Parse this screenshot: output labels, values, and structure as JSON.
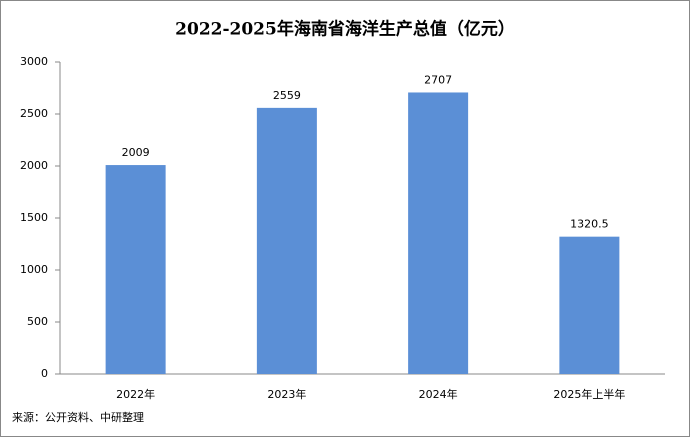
{
  "chart_data": {
    "type": "bar",
    "title": "2022-2025年海南省海洋生产总值（亿元）",
    "categories": [
      "2022年",
      "2023年",
      "2024年",
      "2025年上半年"
    ],
    "values": [
      2009,
      2559,
      2707,
      1320.5
    ],
    "color": "#5b8fd6",
    "ylim": [
      0,
      3000
    ],
    "yticks": [
      0,
      500,
      1000,
      1500,
      2000,
      2500,
      3000
    ],
    "grid": false,
    "source": "来源：公开资料、中研整理"
  }
}
